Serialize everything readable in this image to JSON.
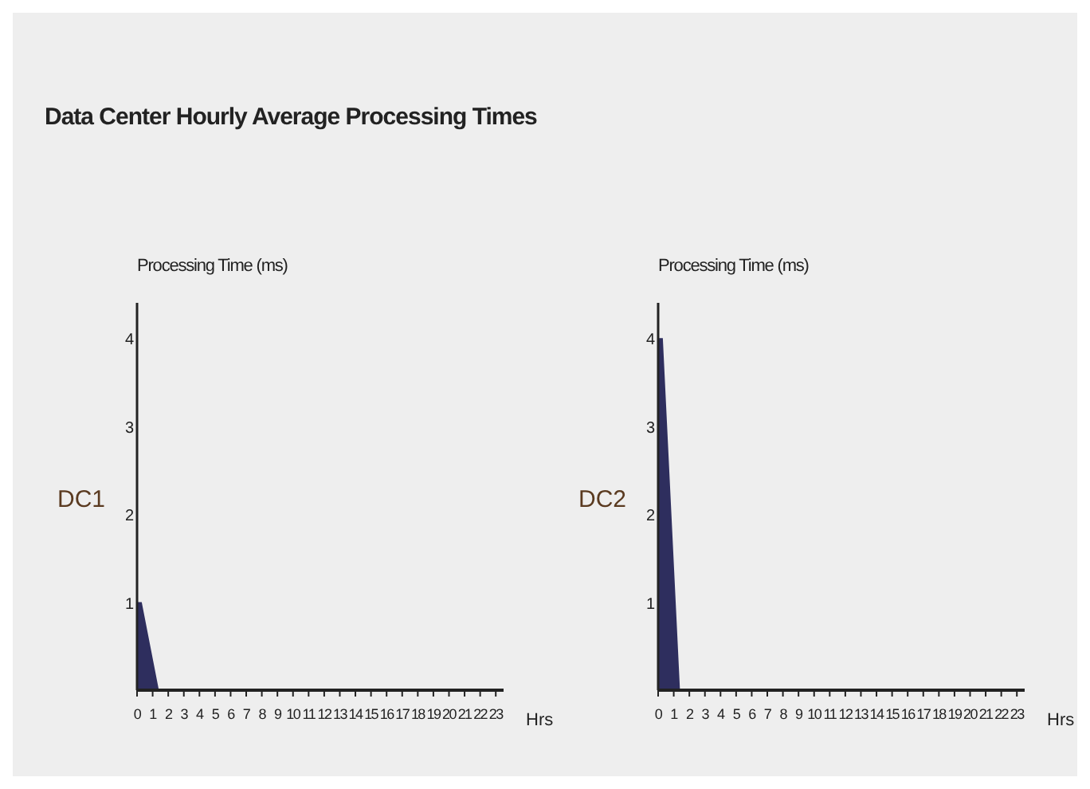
{
  "chart_data": [
    {
      "type": "area",
      "title": "Data Center Hourly Average Processing Times",
      "annotations": [
        "DC1"
      ],
      "ylabel": "Processing Time (ms)",
      "xlabel": "Hrs",
      "x": [
        0,
        0.3,
        1.4,
        23
      ],
      "series": [
        {
          "color": "#2e2e5e",
          "values": [
            1,
            1,
            0,
            0
          ]
        }
      ],
      "xlim": [
        0,
        23.5
      ],
      "xticks": [
        0,
        1,
        2,
        3,
        4,
        5,
        6,
        7,
        8,
        9,
        10,
        11,
        12,
        13,
        14,
        15,
        16,
        17,
        18,
        19,
        20,
        21,
        22,
        23
      ],
      "ylim": [
        0,
        4.4
      ],
      "yticks": [
        1,
        2,
        3,
        4
      ]
    },
    {
      "type": "area",
      "annotations": [
        "DC2"
      ],
      "ylabel": "Processing Time (ms)",
      "xlabel": "Hrs",
      "x": [
        0,
        0.3,
        1.4,
        23
      ],
      "series": [
        {
          "color": "#2e2e5e",
          "values": [
            4,
            4,
            0,
            0
          ]
        }
      ],
      "xlim": [
        0,
        23.5
      ],
      "xticks": [
        0,
        1,
        2,
        3,
        4,
        5,
        6,
        7,
        8,
        9,
        10,
        11,
        12,
        13,
        14,
        15,
        16,
        17,
        18,
        19,
        20,
        21,
        22,
        23
      ],
      "ylim": [
        0,
        4.4
      ],
      "yticks": [
        1,
        2,
        3,
        4
      ]
    }
  ]
}
